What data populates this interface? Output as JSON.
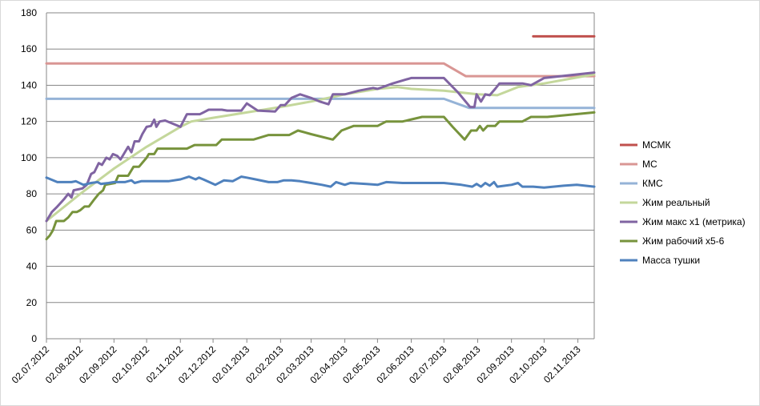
{
  "chart_data": {
    "type": "line",
    "title": "",
    "xlabel": "",
    "ylabel": "",
    "ylim": [
      0,
      180
    ],
    "yticks": [
      0,
      20,
      40,
      60,
      80,
      100,
      120,
      140,
      160,
      180
    ],
    "xlim": [
      "2012-07-02",
      "2013-11-17"
    ],
    "x_tick_labels": [
      "02.07.2012",
      "02.08.2012",
      "02.09.2012",
      "02.10.2012",
      "02.11.2012",
      "02.12.2012",
      "02.01.2013",
      "02.02.2013",
      "02.03.2013",
      "02.04.2013",
      "02.05.2013",
      "02.06.2013",
      "02.07.2013",
      "02.08.2013",
      "02.09.2013",
      "02.10.2013",
      "02.11.2013"
    ],
    "x_tick_dates": [
      "2012-07-02",
      "2012-08-02",
      "2012-09-02",
      "2012-10-02",
      "2012-11-02",
      "2012-12-02",
      "2013-01-02",
      "2013-02-02",
      "2013-03-02",
      "2013-04-02",
      "2013-05-02",
      "2013-06-02",
      "2013-07-02",
      "2013-08-02",
      "2013-09-02",
      "2013-10-02",
      "2013-11-02"
    ],
    "grid": "horizontal",
    "legend_position": "right",
    "series": [
      {
        "name": "МСМК",
        "color": "#C0504D",
        "points": [
          [
            "2013-09-22",
            167
          ],
          [
            "2013-11-17",
            167
          ]
        ]
      },
      {
        "name": "МС",
        "color": "#D99694",
        "points": [
          [
            "2012-07-02",
            152
          ],
          [
            "2013-07-02",
            152
          ],
          [
            "2013-07-22",
            145
          ],
          [
            "2013-11-17",
            145
          ]
        ]
      },
      {
        "name": "КМС",
        "color": "#95B3D7",
        "points": [
          [
            "2012-07-02",
            132.5
          ],
          [
            "2013-07-02",
            132.5
          ],
          [
            "2013-07-25",
            127.5
          ],
          [
            "2013-11-17",
            127.5
          ]
        ]
      },
      {
        "name": "Жим реальный",
        "color": "#C4D79B",
        "points": [
          [
            "2012-07-02",
            65
          ],
          [
            "2012-08-02",
            80
          ],
          [
            "2012-09-02",
            94
          ],
          [
            "2012-10-02",
            106
          ],
          [
            "2012-11-02",
            117
          ],
          [
            "2012-11-12",
            120
          ],
          [
            "2012-12-02",
            122
          ],
          [
            "2013-01-02",
            125
          ],
          [
            "2013-02-02",
            128
          ],
          [
            "2013-03-02",
            131
          ],
          [
            "2013-04-02",
            135
          ],
          [
            "2013-05-02",
            138
          ],
          [
            "2013-05-20",
            139
          ],
          [
            "2013-06-02",
            138
          ],
          [
            "2013-07-02",
            137
          ],
          [
            "2013-08-02",
            135
          ],
          [
            "2013-08-20",
            134.5
          ],
          [
            "2013-09-08",
            139
          ],
          [
            "2013-10-02",
            141
          ],
          [
            "2013-11-17",
            146
          ]
        ]
      },
      {
        "name": "Жим макс x1 (метрика)",
        "color": "#8064A2",
        "points": [
          [
            "2012-07-02",
            65
          ],
          [
            "2012-07-07",
            70
          ],
          [
            "2012-07-12",
            73
          ],
          [
            "2012-07-18",
            77
          ],
          [
            "2012-07-22",
            80
          ],
          [
            "2012-07-25",
            78
          ],
          [
            "2012-07-27",
            82
          ],
          [
            "2012-08-04",
            83
          ],
          [
            "2012-08-08",
            85
          ],
          [
            "2012-08-12",
            91
          ],
          [
            "2012-08-15",
            92
          ],
          [
            "2012-08-19",
            97
          ],
          [
            "2012-08-22",
            96
          ],
          [
            "2012-08-26",
            100
          ],
          [
            "2012-08-29",
            99
          ],
          [
            "2012-09-01",
            102
          ],
          [
            "2012-09-05",
            101
          ],
          [
            "2012-09-08",
            99
          ],
          [
            "2012-09-12",
            103
          ],
          [
            "2012-09-15",
            106
          ],
          [
            "2012-09-18",
            103
          ],
          [
            "2012-09-21",
            109
          ],
          [
            "2012-09-25",
            109
          ],
          [
            "2012-09-28",
            113
          ],
          [
            "2012-10-02",
            117
          ],
          [
            "2012-10-06",
            117.5
          ],
          [
            "2012-10-09",
            121
          ],
          [
            "2012-10-11",
            117
          ],
          [
            "2012-10-14",
            120
          ],
          [
            "2012-10-19",
            120.5
          ],
          [
            "2012-10-25",
            119
          ],
          [
            "2012-11-02",
            117
          ],
          [
            "2012-11-08",
            124
          ],
          [
            "2012-11-20",
            124
          ],
          [
            "2012-11-28",
            126.5
          ],
          [
            "2012-12-10",
            126.5
          ],
          [
            "2012-12-15",
            126
          ],
          [
            "2012-12-28",
            126
          ],
          [
            "2013-01-02",
            130
          ],
          [
            "2013-01-12",
            126
          ],
          [
            "2013-01-28",
            125.5
          ],
          [
            "2013-02-02",
            129
          ],
          [
            "2013-02-06",
            129
          ],
          [
            "2013-02-12",
            133
          ],
          [
            "2013-02-20",
            135
          ],
          [
            "2013-03-02",
            133
          ],
          [
            "2013-03-10",
            131
          ],
          [
            "2013-03-18",
            129.5
          ],
          [
            "2013-03-22",
            135
          ],
          [
            "2013-04-02",
            135
          ],
          [
            "2013-04-15",
            137
          ],
          [
            "2013-04-28",
            138.5
          ],
          [
            "2013-05-02",
            138
          ],
          [
            "2013-05-16",
            141
          ],
          [
            "2013-06-02",
            144
          ],
          [
            "2013-07-02",
            144
          ],
          [
            "2013-07-15",
            136
          ],
          [
            "2013-07-26",
            128
          ],
          [
            "2013-07-30",
            128
          ],
          [
            "2013-08-01",
            135
          ],
          [
            "2013-08-05",
            131
          ],
          [
            "2013-08-09",
            135
          ],
          [
            "2013-08-13",
            134.5
          ],
          [
            "2013-08-18",
            138
          ],
          [
            "2013-08-22",
            141
          ],
          [
            "2013-09-02",
            141
          ],
          [
            "2013-09-12",
            141
          ],
          [
            "2013-09-20",
            140
          ],
          [
            "2013-10-02",
            144
          ],
          [
            "2013-11-17",
            147
          ]
        ]
      },
      {
        "name": "Жим рабочий x5-6",
        "color": "#77933C",
        "points": [
          [
            "2012-07-02",
            55
          ],
          [
            "2012-07-05",
            57
          ],
          [
            "2012-07-08",
            60
          ],
          [
            "2012-07-11",
            65
          ],
          [
            "2012-07-18",
            65
          ],
          [
            "2012-07-22",
            67
          ],
          [
            "2012-07-26",
            70
          ],
          [
            "2012-07-30",
            70
          ],
          [
            "2012-08-02",
            71
          ],
          [
            "2012-08-06",
            73
          ],
          [
            "2012-08-10",
            73
          ],
          [
            "2012-08-15",
            77
          ],
          [
            "2012-08-19",
            80
          ],
          [
            "2012-08-23",
            82
          ],
          [
            "2012-08-25",
            85
          ],
          [
            "2012-09-03",
            86
          ],
          [
            "2012-09-06",
            90
          ],
          [
            "2012-09-15",
            90
          ],
          [
            "2012-09-20",
            95
          ],
          [
            "2012-09-25",
            95
          ],
          [
            "2012-10-02",
            100
          ],
          [
            "2012-10-04",
            102
          ],
          [
            "2012-10-09",
            102
          ],
          [
            "2012-10-12",
            105
          ],
          [
            "2012-11-02",
            105
          ],
          [
            "2012-11-08",
            105
          ],
          [
            "2012-11-15",
            107
          ],
          [
            "2012-12-05",
            107
          ],
          [
            "2012-12-10",
            110
          ],
          [
            "2013-01-02",
            110
          ],
          [
            "2013-01-08",
            110
          ],
          [
            "2013-01-22",
            112.5
          ],
          [
            "2013-02-02",
            112.5
          ],
          [
            "2013-02-10",
            112.5
          ],
          [
            "2013-02-18",
            115
          ],
          [
            "2013-03-02",
            113
          ],
          [
            "2013-03-22",
            110
          ],
          [
            "2013-03-30",
            115
          ],
          [
            "2013-04-10",
            117.5
          ],
          [
            "2013-05-02",
            117.5
          ],
          [
            "2013-05-10",
            120
          ],
          [
            "2013-05-25",
            120
          ],
          [
            "2013-06-12",
            122.5
          ],
          [
            "2013-07-02",
            122.5
          ],
          [
            "2013-07-10",
            117
          ],
          [
            "2013-07-21",
            110
          ],
          [
            "2013-07-27",
            115
          ],
          [
            "2013-08-01",
            115
          ],
          [
            "2013-08-04",
            117.5
          ],
          [
            "2013-08-07",
            115
          ],
          [
            "2013-08-11",
            117.5
          ],
          [
            "2013-08-18",
            117.5
          ],
          [
            "2013-08-22",
            120
          ],
          [
            "2013-09-02",
            120
          ],
          [
            "2013-09-12",
            120
          ],
          [
            "2013-09-20",
            122.5
          ],
          [
            "2013-10-05",
            122.5
          ],
          [
            "2013-11-17",
            125
          ]
        ]
      },
      {
        "name": "Масса тушки",
        "color": "#4F81BD",
        "points": [
          [
            "2012-07-02",
            89
          ],
          [
            "2012-07-12",
            86.5
          ],
          [
            "2012-07-25",
            86.5
          ],
          [
            "2012-07-29",
            87
          ],
          [
            "2012-08-05",
            85
          ],
          [
            "2012-08-12",
            86
          ],
          [
            "2012-08-18",
            86.5
          ],
          [
            "2012-08-21",
            85.5
          ],
          [
            "2012-08-28",
            86
          ],
          [
            "2012-09-02",
            86.5
          ],
          [
            "2012-09-12",
            86.5
          ],
          [
            "2012-09-18",
            87.5
          ],
          [
            "2012-09-21",
            86
          ],
          [
            "2012-09-27",
            87
          ],
          [
            "2012-10-02",
            87
          ],
          [
            "2012-10-10",
            87
          ],
          [
            "2012-10-22",
            87
          ],
          [
            "2012-11-02",
            88
          ],
          [
            "2012-11-10",
            89.5
          ],
          [
            "2012-11-16",
            88
          ],
          [
            "2012-11-19",
            89
          ],
          [
            "2012-11-23",
            88
          ],
          [
            "2012-12-04",
            85
          ],
          [
            "2012-12-12",
            87.5
          ],
          [
            "2012-12-20",
            87
          ],
          [
            "2012-12-28",
            89.5
          ],
          [
            "2013-01-02",
            89
          ],
          [
            "2013-01-10",
            88
          ],
          [
            "2013-01-22",
            86.5
          ],
          [
            "2013-01-30",
            86.5
          ],
          [
            "2013-02-05",
            87.5
          ],
          [
            "2013-02-12",
            87.5
          ],
          [
            "2013-02-20",
            87
          ],
          [
            "2013-03-02",
            86
          ],
          [
            "2013-03-12",
            85
          ],
          [
            "2013-03-20",
            84
          ],
          [
            "2013-03-25",
            86.5
          ],
          [
            "2013-04-02",
            85
          ],
          [
            "2013-04-07",
            86
          ],
          [
            "2013-04-22",
            85.5
          ],
          [
            "2013-05-02",
            85
          ],
          [
            "2013-05-10",
            86.5
          ],
          [
            "2013-05-25",
            86
          ],
          [
            "2013-06-02",
            86
          ],
          [
            "2013-06-22",
            86
          ],
          [
            "2013-07-02",
            86
          ],
          [
            "2013-07-18",
            85
          ],
          [
            "2013-07-28",
            84
          ],
          [
            "2013-08-01",
            85.5
          ],
          [
            "2013-08-05",
            84
          ],
          [
            "2013-08-09",
            86
          ],
          [
            "2013-08-13",
            84.5
          ],
          [
            "2013-08-17",
            86.5
          ],
          [
            "2013-08-20",
            84
          ],
          [
            "2013-09-02",
            85
          ],
          [
            "2013-09-08",
            86
          ],
          [
            "2013-09-12",
            84
          ],
          [
            "2013-09-22",
            84
          ],
          [
            "2013-10-02",
            83.5
          ],
          [
            "2013-10-20",
            84.5
          ],
          [
            "2013-11-01",
            85
          ],
          [
            "2013-11-17",
            84
          ]
        ]
      }
    ]
  }
}
